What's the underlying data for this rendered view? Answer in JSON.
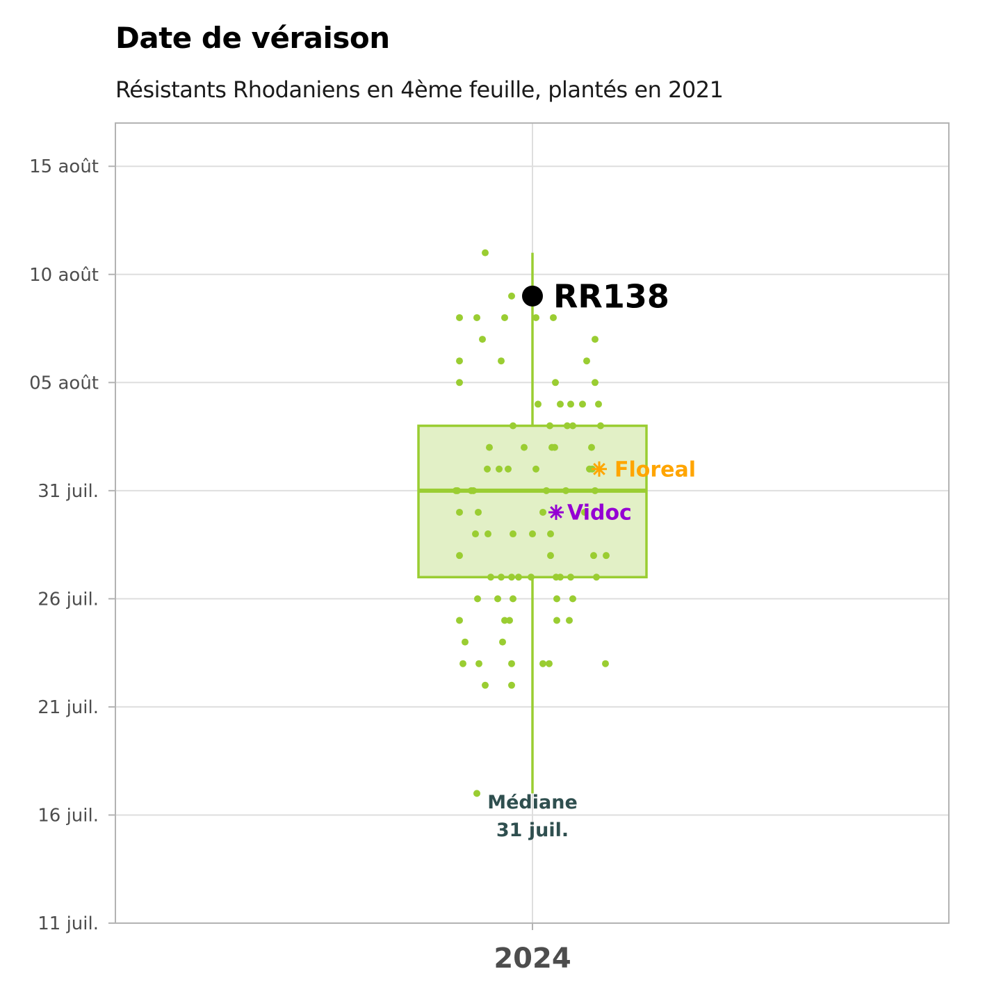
{
  "chart_data": {
    "type": "box",
    "title": "Date de véraison",
    "subtitle": "Résistants Rhodaniens en 4ème feuille, plantés en 2021",
    "xlabel": "",
    "ylabel": "",
    "categories": [
      "2024"
    ],
    "y_axis": {
      "type": "date",
      "range": [
        "2024-07-11",
        "2024-08-17"
      ],
      "ticks": [
        {
          "value": "2024-07-11",
          "label": "11 juil."
        },
        {
          "value": "2024-07-16",
          "label": "16 juil."
        },
        {
          "value": "2024-07-21",
          "label": "21 juil."
        },
        {
          "value": "2024-07-26",
          "label": "26 juil."
        },
        {
          "value": "2024-07-31",
          "label": "31 juil."
        },
        {
          "value": "2024-08-05",
          "label": "05 août"
        },
        {
          "value": "2024-08-10",
          "label": "10 août"
        },
        {
          "value": "2024-08-15",
          "label": "15 août"
        }
      ]
    },
    "grid": true,
    "box": {
      "category": "2024",
      "whisker_low": "2024-07-17",
      "q1": "2024-07-27",
      "median": "2024-07-31",
      "q3": "2024-08-03",
      "whisker_high": "2024-08-11",
      "color": "#9acd32",
      "fill": "#e2f0c6"
    },
    "median_annotation": {
      "line1": "Médiane",
      "line2": "31 juil."
    },
    "highlights": [
      {
        "label": "RR138",
        "date": "2024-08-09",
        "marker": "circle",
        "color": "#000000"
      },
      {
        "label": "Floreal",
        "date": "2024-08-01",
        "marker": "asterisk",
        "color": "#ffa500"
      },
      {
        "label": "Vidoc",
        "date": "2024-07-30",
        "marker": "asterisk",
        "color": "#9400d3"
      }
    ],
    "points": {
      "color": "#9acd32",
      "dates": [
        "2024-08-11",
        "2024-08-09",
        "2024-08-08",
        "2024-08-08",
        "2024-08-08",
        "2024-08-08",
        "2024-08-08",
        "2024-08-07",
        "2024-08-07",
        "2024-08-06",
        "2024-08-06",
        "2024-08-06",
        "2024-08-05",
        "2024-08-05",
        "2024-08-05",
        "2024-08-04",
        "2024-08-04",
        "2024-08-04",
        "2024-08-04",
        "2024-08-04",
        "2024-08-03",
        "2024-08-03",
        "2024-08-03",
        "2024-08-03",
        "2024-08-03",
        "2024-08-02",
        "2024-08-02",
        "2024-08-02",
        "2024-08-02",
        "2024-08-02",
        "2024-08-01",
        "2024-08-01",
        "2024-08-01",
        "2024-08-01",
        "2024-08-01",
        "2024-08-01",
        "2024-07-31",
        "2024-07-31",
        "2024-07-31",
        "2024-07-31",
        "2024-07-31",
        "2024-07-31",
        "2024-07-31",
        "2024-07-30",
        "2024-07-30",
        "2024-07-30",
        "2024-07-30",
        "2024-07-29",
        "2024-07-29",
        "2024-07-29",
        "2024-07-29",
        "2024-07-29",
        "2024-07-28",
        "2024-07-28",
        "2024-07-28",
        "2024-07-28",
        "2024-07-27",
        "2024-07-27",
        "2024-07-27",
        "2024-07-27",
        "2024-07-27",
        "2024-07-27",
        "2024-07-27",
        "2024-07-27",
        "2024-07-27",
        "2024-07-26",
        "2024-07-26",
        "2024-07-26",
        "2024-07-26",
        "2024-07-26",
        "2024-07-25",
        "2024-07-25",
        "2024-07-25",
        "2024-07-25",
        "2024-07-25",
        "2024-07-24",
        "2024-07-24",
        "2024-07-23",
        "2024-07-23",
        "2024-07-23",
        "2024-07-23",
        "2024-07-23",
        "2024-07-23",
        "2024-07-22",
        "2024-07-22",
        "2024-07-17"
      ]
    }
  }
}
